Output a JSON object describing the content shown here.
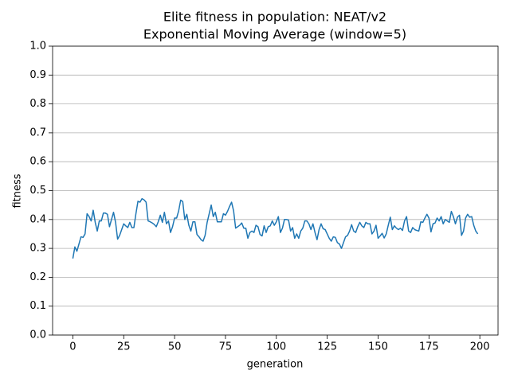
{
  "chart_data": {
    "type": "line",
    "title": "Elite fitness in population: NEAT/v2",
    "subtitle": "Exponential Moving Average (window=5)",
    "xlabel": "generation",
    "ylabel": "fitness",
    "color": "#1f77b4",
    "grid": "y",
    "x": [
      0,
      1,
      2,
      3,
      4,
      5,
      6,
      7,
      8,
      9,
      10,
      11,
      12,
      13,
      14,
      15,
      16,
      17,
      18,
      19,
      20,
      21,
      22,
      23,
      24,
      25,
      26,
      27,
      28,
      29,
      30,
      31,
      32,
      33,
      34,
      35,
      36,
      37,
      38,
      39,
      40,
      41,
      42,
      43,
      44,
      45,
      46,
      47,
      48,
      49,
      50,
      51,
      52,
      53,
      54,
      55,
      56,
      57,
      58,
      59,
      60,
      61,
      62,
      63,
      64,
      65,
      66,
      67,
      68,
      69,
      70,
      71,
      72,
      73,
      74,
      75,
      76,
      77,
      78,
      79,
      80,
      81,
      82,
      83,
      84,
      85,
      86,
      87,
      88,
      89,
      90,
      91,
      92,
      93,
      94,
      95,
      96,
      97,
      98,
      99,
      100,
      101,
      102,
      103,
      104,
      105,
      106,
      107,
      108,
      109,
      110,
      111,
      112,
      113,
      114,
      115,
      116,
      117,
      118,
      119,
      120,
      121,
      122,
      123,
      124,
      125,
      126,
      127,
      128,
      129,
      130,
      131,
      132,
      133,
      134,
      135,
      136,
      137,
      138,
      139,
      140,
      141,
      142,
      143,
      144,
      145,
      146,
      147,
      148,
      149,
      150,
      151,
      152,
      153,
      154,
      155,
      156,
      157,
      158,
      159,
      160,
      161,
      162,
      163,
      164,
      165,
      166,
      167,
      168,
      169,
      170,
      171,
      172,
      173,
      174,
      175,
      176,
      177,
      178,
      179,
      180,
      181,
      182,
      183,
      184,
      185,
      186,
      187,
      188,
      189,
      190,
      191,
      192,
      193,
      194,
      195,
      196,
      197,
      198,
      199
    ],
    "values": [
      0.265,
      0.305,
      0.29,
      0.315,
      0.34,
      0.338,
      0.35,
      0.42,
      0.41,
      0.395,
      0.432,
      0.39,
      0.36,
      0.395,
      0.395,
      0.422,
      0.422,
      0.418,
      0.375,
      0.4,
      0.425,
      0.39,
      0.332,
      0.345,
      0.365,
      0.385,
      0.378,
      0.372,
      0.39,
      0.372,
      0.372,
      0.42,
      0.463,
      0.46,
      0.472,
      0.468,
      0.46,
      0.395,
      0.392,
      0.388,
      0.383,
      0.375,
      0.393,
      0.415,
      0.39,
      0.425,
      0.385,
      0.395,
      0.355,
      0.375,
      0.405,
      0.405,
      0.43,
      0.467,
      0.462,
      0.4,
      0.418,
      0.38,
      0.36,
      0.392,
      0.392,
      0.348,
      0.34,
      0.33,
      0.325,
      0.345,
      0.39,
      0.42,
      0.45,
      0.41,
      0.425,
      0.392,
      0.392,
      0.392,
      0.42,
      0.415,
      0.428,
      0.445,
      0.46,
      0.43,
      0.37,
      0.375,
      0.38,
      0.388,
      0.37,
      0.37,
      0.335,
      0.355,
      0.36,
      0.355,
      0.38,
      0.375,
      0.348,
      0.343,
      0.378,
      0.355,
      0.375,
      0.378,
      0.395,
      0.38,
      0.392,
      0.41,
      0.355,
      0.37,
      0.4,
      0.4,
      0.398,
      0.36,
      0.372,
      0.335,
      0.35,
      0.335,
      0.36,
      0.37,
      0.395,
      0.395,
      0.385,
      0.365,
      0.385,
      0.355,
      0.33,
      0.365,
      0.385,
      0.368,
      0.365,
      0.35,
      0.335,
      0.325,
      0.34,
      0.338,
      0.32,
      0.315,
      0.3,
      0.32,
      0.34,
      0.345,
      0.36,
      0.382,
      0.36,
      0.355,
      0.375,
      0.39,
      0.378,
      0.372,
      0.39,
      0.385,
      0.385,
      0.35,
      0.36,
      0.38,
      0.335,
      0.343,
      0.352,
      0.336,
      0.35,
      0.38,
      0.408,
      0.365,
      0.378,
      0.37,
      0.365,
      0.37,
      0.362,
      0.395,
      0.41,
      0.36,
      0.355,
      0.372,
      0.365,
      0.362,
      0.36,
      0.392,
      0.39,
      0.405,
      0.418,
      0.405,
      0.357,
      0.385,
      0.388,
      0.405,
      0.395,
      0.41,
      0.385,
      0.4,
      0.395,
      0.39,
      0.428,
      0.41,
      0.385,
      0.408,
      0.415,
      0.345,
      0.36,
      0.405,
      0.418,
      0.408,
      0.41,
      0.38,
      0.36,
      0.35
    ],
    "xlim": [
      -9.95,
      208.95
    ],
    "xticks": [
      0,
      25,
      50,
      75,
      100,
      125,
      150,
      175,
      200
    ],
    "ylim": [
      0,
      1
    ],
    "yticks": [
      {
        "value": 0,
        "label": "0.0"
      },
      0.1,
      0.2,
      0.3,
      0.4,
      0.5,
      0.6,
      0.7,
      0.8,
      0.9,
      {
        "value": 1,
        "label": "1.0"
      }
    ]
  }
}
